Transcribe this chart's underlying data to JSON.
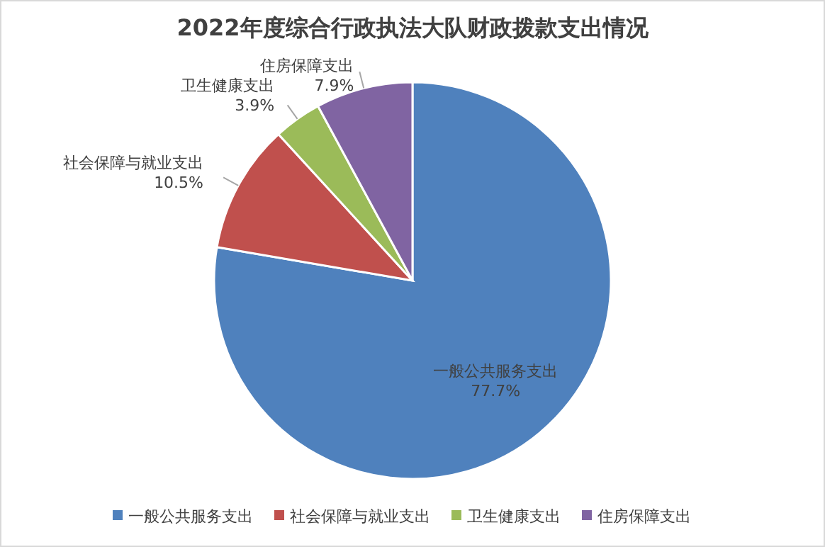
{
  "chart_data": {
    "type": "pie",
    "title": "2022年度综合行政执法大队财政拨款支出情况",
    "categories": [
      "一般公共服务支出",
      "社会保障与就业支出",
      "卫生健康支出",
      "住房保障支出"
    ],
    "values": [
      77.7,
      10.5,
      3.9,
      7.9
    ],
    "colors": [
      "#4f81bd",
      "#c0504d",
      "#9bbb59",
      "#8064a2"
    ],
    "value_labels": [
      "77.7%",
      "10.5%",
      "3.9%",
      "7.9%"
    ],
    "legend": "bottom"
  }
}
